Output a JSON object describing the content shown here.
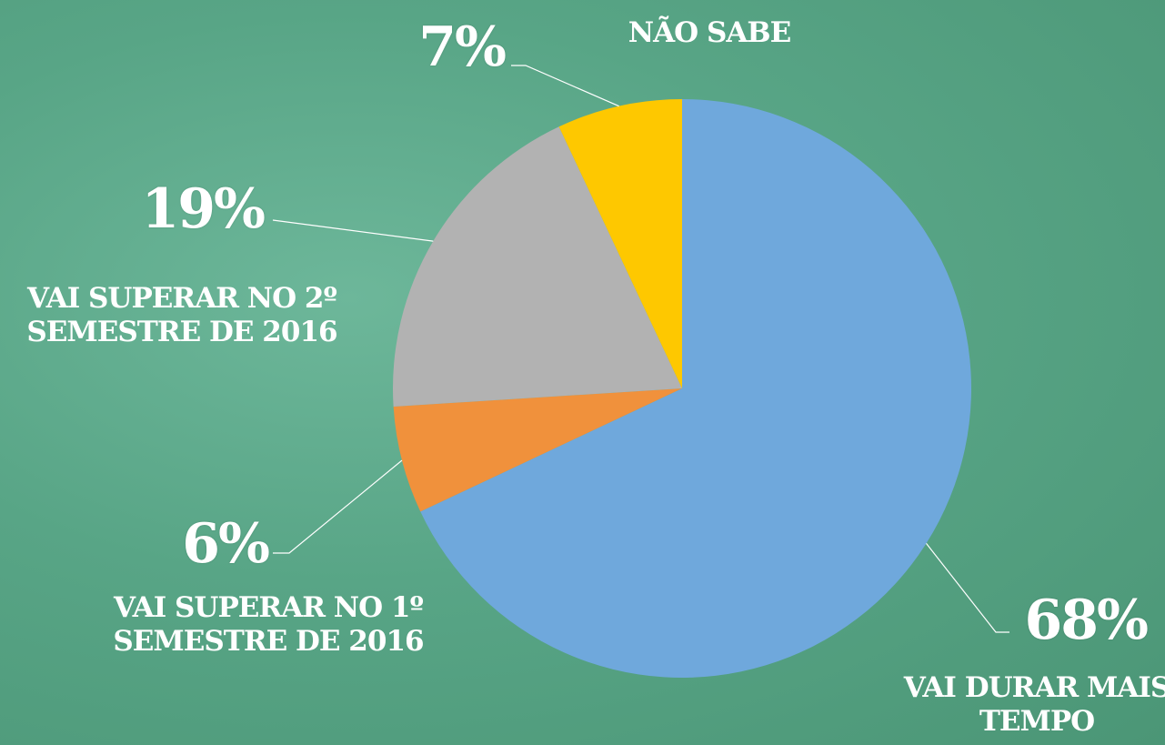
{
  "chart_data": {
    "type": "pie",
    "categories": [
      "VAI DURAR MAIS TEMPO",
      "VAI SUPERAR NO 1º SEMESTRE DE 2016",
      "VAI SUPERAR NO 2º SEMESTRE DE 2016",
      "NÃO SABE"
    ],
    "values": [
      68,
      6,
      19,
      7
    ],
    "value_labels": [
      "68%",
      "6%",
      "19%",
      "7%"
    ],
    "colors": [
      "#6fa8dc",
      "#f0913c",
      "#b2b2b2",
      "#fec800"
    ]
  }
}
